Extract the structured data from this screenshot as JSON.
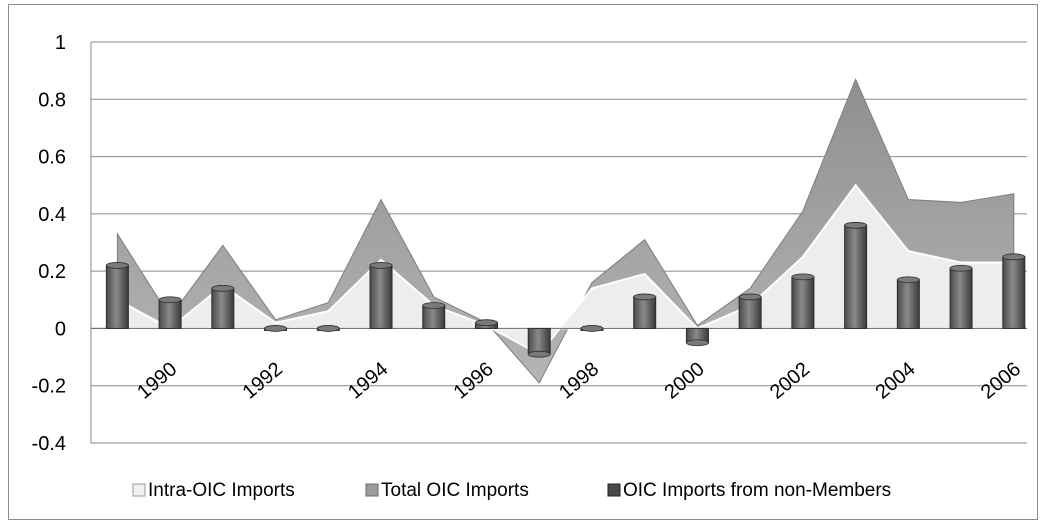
{
  "chart_data": {
    "type": "area",
    "title": "",
    "xlabel": "",
    "ylabel": "",
    "ylim": [
      -0.4,
      1
    ],
    "yticks": [
      "1",
      "0.8",
      "0.6",
      "0.4",
      "0.2",
      "0",
      "-0.2",
      "-0.4"
    ],
    "x": [
      1989,
      1990,
      1991,
      1992,
      1993,
      1994,
      1995,
      1996,
      1997,
      1998,
      1999,
      2000,
      2001,
      2002,
      2003,
      2004,
      2005,
      2006
    ],
    "xticks": [
      "1990",
      "1992",
      "1994",
      "1996",
      "1998",
      "2000",
      "2002",
      "2004",
      "2006"
    ],
    "grid": true,
    "legend_position": "bottom",
    "series": [
      {
        "name": "Intra-OIC Imports",
        "type": "area",
        "values": [
          0.1,
          0.0,
          0.15,
          0.02,
          0.06,
          0.24,
          0.08,
          0.01,
          -0.09,
          0.14,
          0.19,
          0.0,
          0.08,
          0.25,
          0.5,
          0.27,
          0.23,
          0.23
        ]
      },
      {
        "name": "Total OIC Imports",
        "type": "area",
        "values": [
          0.33,
          0.04,
          0.29,
          0.03,
          0.09,
          0.45,
          0.11,
          0.02,
          -0.19,
          0.16,
          0.31,
          0.01,
          0.14,
          0.41,
          0.87,
          0.45,
          0.44,
          0.47
        ]
      },
      {
        "name": "OIC Imports from non-Members",
        "type": "bar",
        "values": [
          0.22,
          0.1,
          0.14,
          0.0,
          0.0,
          0.22,
          0.08,
          0.02,
          -0.09,
          0.0,
          0.11,
          -0.05,
          0.11,
          0.18,
          0.36,
          0.17,
          0.21,
          0.25
        ]
      }
    ],
    "colors": {
      "intra": "#ededed",
      "intra_edge": "#ffffff",
      "total": "#9c9c9c",
      "bar": "#6b6b6b",
      "bar_dark": "#404040",
      "grid": "#888888"
    }
  }
}
